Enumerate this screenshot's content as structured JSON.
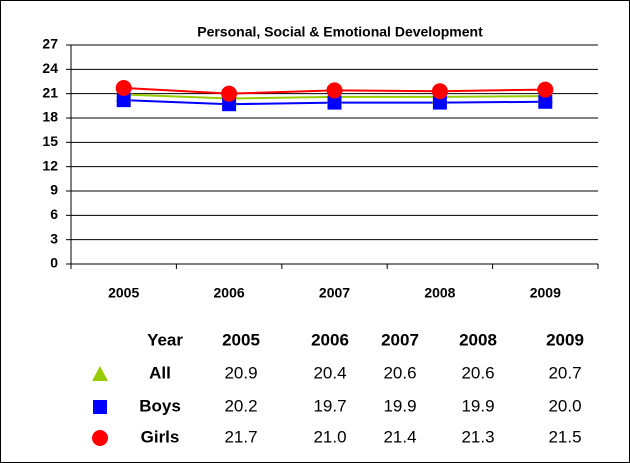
{
  "chart_data": {
    "type": "line",
    "title": "Personal, Social & Emotional Development",
    "categories": [
      "2005",
      "2006",
      "2007",
      "2008",
      "2009"
    ],
    "series": [
      {
        "name": "All",
        "color": "#99cc00",
        "marker": "triangle",
        "values": [
          20.9,
          20.4,
          20.6,
          20.6,
          20.7
        ]
      },
      {
        "name": "Boys",
        "color": "#0000ff",
        "marker": "square",
        "values": [
          20.2,
          19.7,
          19.9,
          19.9,
          20.0
        ],
        "value_labels": [
          "20.2",
          "19.7",
          "19.9",
          "19.9",
          "20.0"
        ]
      },
      {
        "name": "Girls",
        "color": "#ff0000",
        "marker": "circle",
        "values": [
          21.7,
          21.0,
          21.4,
          21.3,
          21.5
        ],
        "value_labels": [
          "21.7",
          "21.0",
          "21.4",
          "21.3",
          "21.5"
        ]
      }
    ],
    "ylim": [
      0,
      27
    ],
    "yticks": [
      0,
      3,
      6,
      9,
      12,
      15,
      18,
      21,
      24,
      27
    ],
    "grid": true,
    "data_table_header": "Year"
  }
}
